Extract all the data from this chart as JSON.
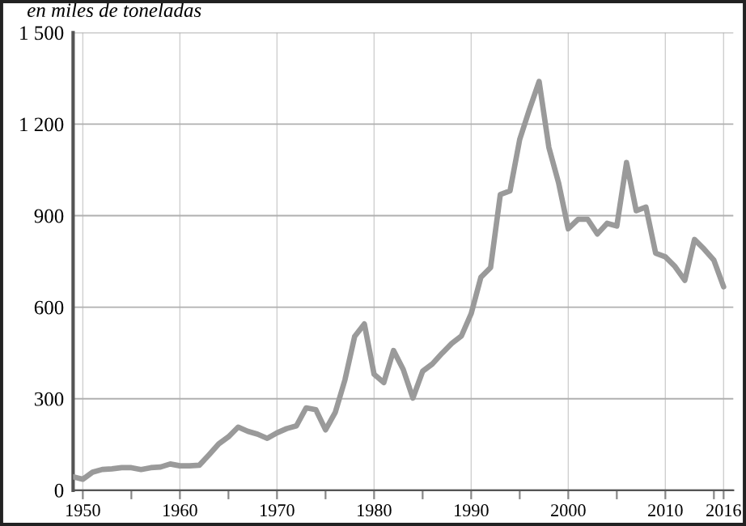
{
  "chart_data": {
    "type": "line",
    "title": "en miles de toneladas",
    "x": [
      1949,
      1950,
      1951,
      1952,
      1953,
      1954,
      1955,
      1956,
      1957,
      1958,
      1959,
      1960,
      1961,
      1962,
      1963,
      1964,
      1965,
      1966,
      1967,
      1968,
      1969,
      1970,
      1971,
      1972,
      1973,
      1974,
      1975,
      1976,
      1977,
      1978,
      1979,
      1980,
      1981,
      1982,
      1983,
      1984,
      1985,
      1986,
      1987,
      1988,
      1989,
      1990,
      1991,
      1992,
      1993,
      1994,
      1995,
      1996,
      1997,
      1998,
      1999,
      2000,
      2001,
      2002,
      2003,
      2004,
      2005,
      2006,
      2007,
      2008,
      2009,
      2010,
      2011,
      2012,
      2013,
      2014,
      2015,
      2016
    ],
    "series": [
      {
        "color": "#9a9a9a",
        "values": [
          44,
          36,
          59,
          68,
          70,
          74,
          74,
          68,
          74,
          76,
          86,
          80,
          80,
          82,
          116,
          152,
          175,
          207,
          193,
          184,
          170,
          188,
          202,
          211,
          270,
          264,
          198,
          255,
          362,
          504,
          545,
          380,
          353,
          458,
          396,
          302,
          390,
          414,
          449,
          481,
          506,
          579,
          698,
          730,
          969,
          981,
          1150,
          1248,
          1340,
          1124,
          1008,
          857,
          888,
          888,
          840,
          875,
          866,
          1074,
          916,
          928,
          777,
          765,
          733,
          688,
          822,
          790,
          754,
          667
        ]
      }
    ],
    "xlim": [
      1949,
      2017
    ],
    "xticks": [
      1950,
      {
        "value": 1955,
        "label": null
      },
      1960,
      {
        "value": 1965,
        "label": null
      },
      1970,
      {
        "value": 1975,
        "label": null
      },
      1980,
      {
        "value": 1985,
        "label": null
      },
      1990,
      {
        "value": 1995,
        "label": null
      },
      2000,
      {
        "value": 2005,
        "label": null
      },
      2010,
      {
        "value": 2015,
        "label": null
      },
      2016
    ],
    "ylim": [
      0,
      1500
    ],
    "yticks": [
      0,
      300,
      600,
      900,
      {
        "value": 1200,
        "label": "1 200"
      },
      {
        "value": 1500,
        "label": "1 500"
      }
    ],
    "grid": true,
    "line_style": "solid",
    "marker": "none",
    "legend": false
  }
}
